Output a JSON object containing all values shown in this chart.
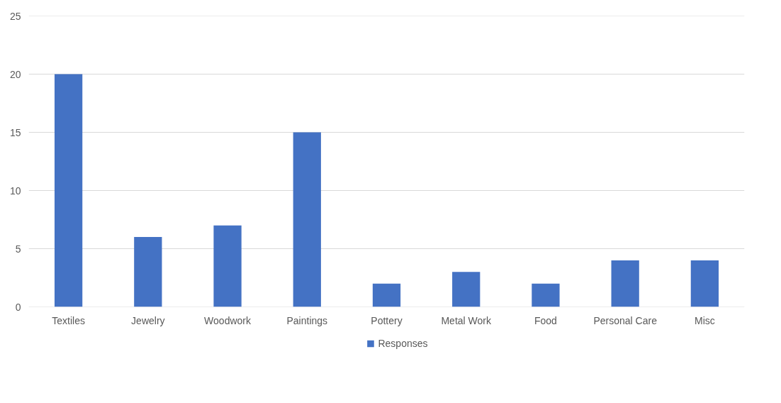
{
  "chart_data": {
    "type": "bar",
    "categories": [
      "Textiles",
      "Jewelry",
      "Woodwork",
      "Paintings",
      "Pottery",
      "Metal Work",
      "Food",
      "Personal Care",
      "Misc"
    ],
    "series": [
      {
        "name": "Responses",
        "color": "#4472c4",
        "values": [
          20,
          6,
          7,
          15,
          2,
          3,
          2,
          4,
          4
        ]
      }
    ],
    "ylim": [
      0,
      25
    ],
    "yticks": [
      0,
      5,
      10,
      15,
      20,
      25
    ],
    "grid": "y",
    "legend": "bottom"
  }
}
